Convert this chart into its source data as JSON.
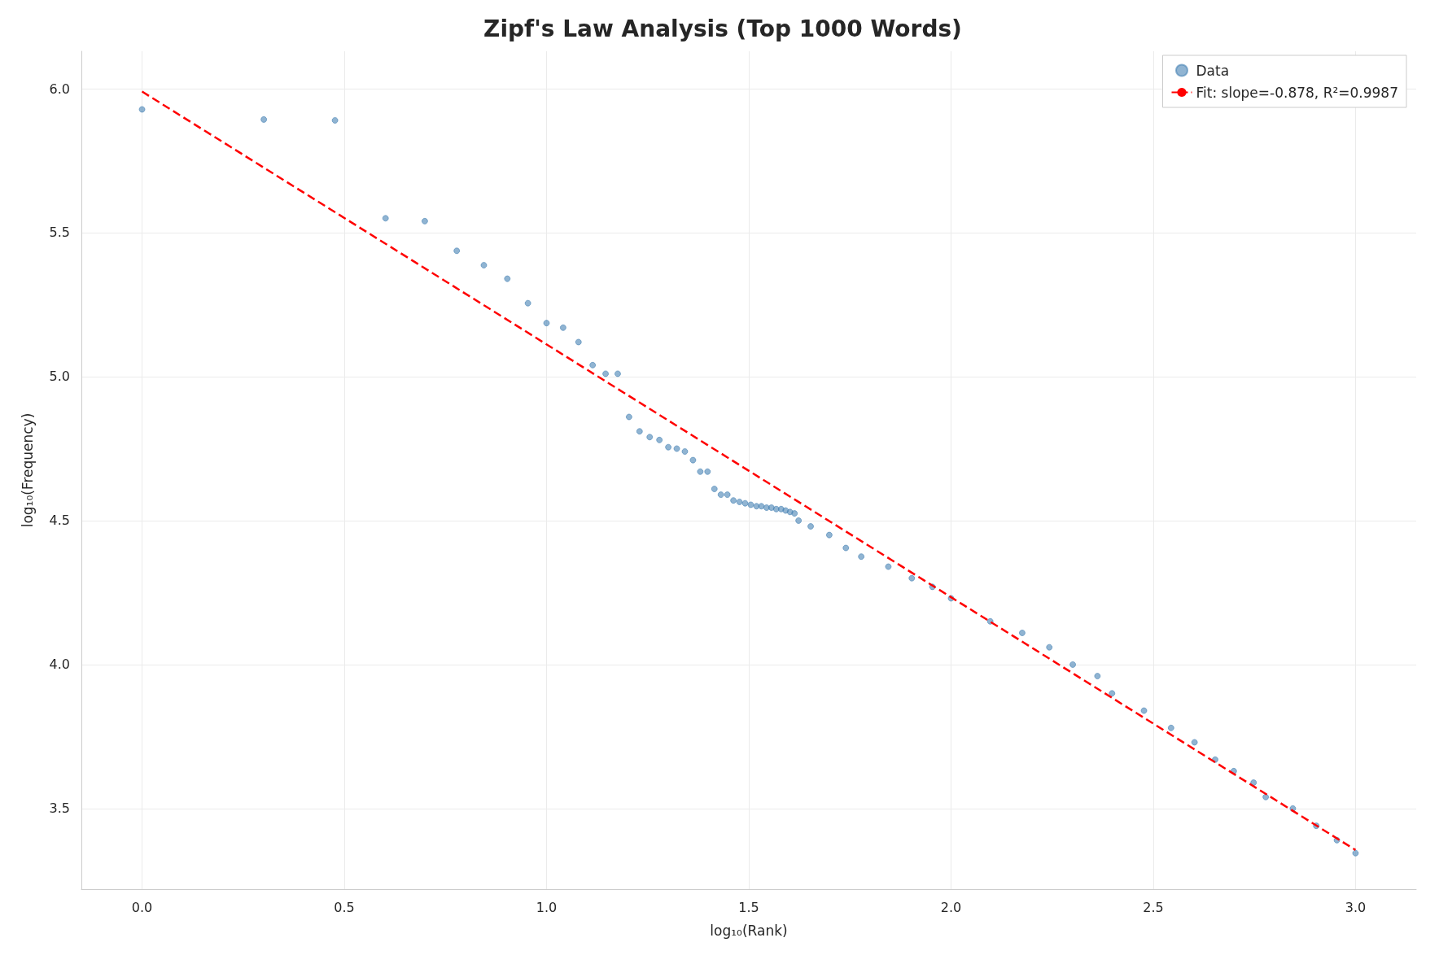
{
  "chart_data": {
    "type": "scatter",
    "title": "Zipf's Law Analysis (Top 1000 Words)",
    "xlabel": "log₁₀(Rank)",
    "ylabel": "log₁₀(Frequency)",
    "xlim": [
      -0.15,
      3.15
    ],
    "ylim": [
      3.22,
      6.13
    ],
    "xticks": [
      {
        "value": 0,
        "label": "0.0"
      },
      {
        "value": 0.5,
        "label": "0.5"
      },
      {
        "value": 1,
        "label": "1.0"
      },
      {
        "value": 1.5,
        "label": "1.5"
      },
      {
        "value": 2,
        "label": "2.0"
      },
      {
        "value": 2.5,
        "label": "2.5"
      },
      {
        "value": 3,
        "label": "3.0"
      }
    ],
    "yticks": [
      {
        "value": 3.5,
        "label": "3.5"
      },
      {
        "value": 4,
        "label": "4.0"
      },
      {
        "value": 4.5,
        "label": "4.5"
      },
      {
        "value": 5,
        "label": "5.0"
      },
      {
        "value": 5.5,
        "label": "5.5"
      },
      {
        "value": 6,
        "label": "6.0"
      }
    ],
    "grid": true,
    "legend": "top right",
    "marker": "circle",
    "series": [
      {
        "name": "Data",
        "color": "#4682b4",
        "x": [
          0,
          0.301,
          0.477,
          0.602,
          0.699,
          0.778,
          0.845,
          0.903,
          0.954,
          1.0,
          1.041,
          1.079,
          1.114,
          1.146,
          1.176,
          1.204,
          1.23,
          1.255,
          1.279,
          1.301,
          1.322,
          1.342,
          1.362,
          1.38,
          1.398,
          1.415,
          1.431,
          1.447,
          1.462,
          1.477,
          1.491,
          1.505,
          1.519,
          1.531,
          1.544,
          1.556,
          1.568,
          1.58,
          1.591,
          1.602,
          1.613,
          1.623,
          1.653,
          1.699,
          1.74,
          1.778,
          1.845,
          1.903,
          1.954,
          2.0,
          2.097,
          2.176,
          2.243,
          2.301,
          2.362,
          2.398,
          2.477,
          2.544,
          2.602,
          2.653,
          2.699,
          2.748,
          2.778,
          2.845,
          2.903,
          2.954,
          3.0
        ],
        "values": [
          5.928,
          5.893,
          5.89,
          5.55,
          5.54,
          5.437,
          5.387,
          5.34,
          5.255,
          5.186,
          5.17,
          5.12,
          5.04,
          5.01,
          5.01,
          4.86,
          4.81,
          4.79,
          4.78,
          4.755,
          4.75,
          4.74,
          4.71,
          4.67,
          4.67,
          4.61,
          4.59,
          4.59,
          4.57,
          4.565,
          4.56,
          4.555,
          4.55,
          4.55,
          4.545,
          4.545,
          4.54,
          4.54,
          4.535,
          4.53,
          4.525,
          4.5,
          4.48,
          4.45,
          4.405,
          4.375,
          4.34,
          4.3,
          4.27,
          4.23,
          4.15,
          4.11,
          4.06,
          4.0,
          3.96,
          3.9,
          3.84,
          3.78,
          3.73,
          3.67,
          3.63,
          3.59,
          3.54,
          3.5,
          3.44,
          3.39,
          3.345
        ]
      },
      {
        "name": "Fit: slope=-0.878, R²=0.9987",
        "type": "line",
        "color": "#ff0000",
        "line_style": "dashed",
        "marker": "none",
        "x": [
          0,
          3
        ],
        "values": [
          5.99,
          3.356
        ]
      }
    ]
  }
}
